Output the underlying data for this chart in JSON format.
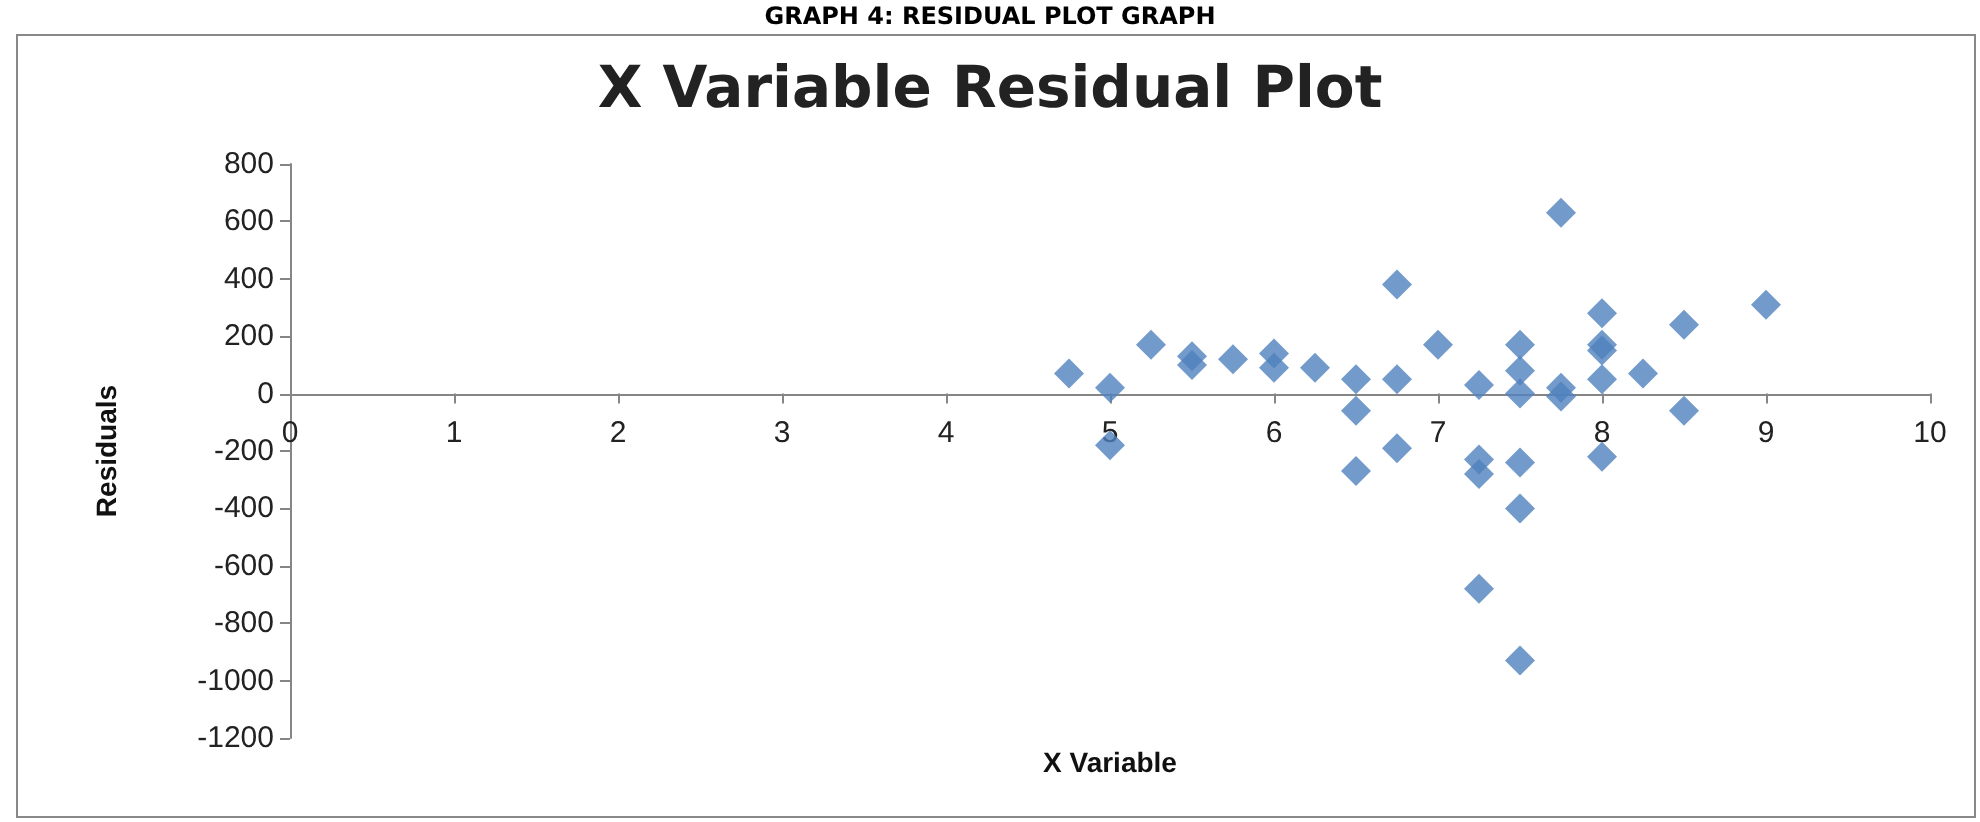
{
  "chart_data": {
    "type": "scatter",
    "title": "X Variable Residual Plot",
    "xlabel": "X Variable",
    "ylabel": "Residuals",
    "annotations": [
      "GRAPH 4: RESIDUAL PLOT GRAPH"
    ],
    "x": [
      4.75,
      5,
      5,
      5.25,
      5.5,
      5.5,
      5.75,
      6,
      6,
      6.25,
      6.5,
      6.5,
      6.5,
      6.75,
      6.75,
      6.75,
      7,
      7.25,
      7.25,
      7.25,
      7.25,
      7.5,
      7.5,
      7.5,
      7.5,
      7.5,
      7.5,
      7.75,
      7.75,
      7.75,
      8,
      8,
      8,
      8,
      8,
      8.25,
      8.5,
      8.5,
      9
    ],
    "values": [
      70,
      20,
      -180,
      170,
      130,
      100,
      120,
      140,
      90,
      90,
      50,
      -60,
      -270,
      380,
      50,
      -190,
      170,
      30,
      -230,
      -280,
      -680,
      170,
      80,
      0,
      -240,
      -400,
      -930,
      630,
      20,
      -10,
      280,
      170,
      150,
      50,
      -220,
      70,
      240,
      -60,
      310
    ],
    "color": "#4f81bd",
    "marker": "diamond",
    "xlim": [
      0,
      10
    ],
    "xticks": [
      0,
      1,
      2,
      3,
      4,
      5,
      6,
      7,
      8,
      9,
      10
    ],
    "ylim": [
      -1200,
      800
    ],
    "yticks": [
      -1200,
      -1000,
      -800,
      -600,
      -400,
      -200,
      0,
      200,
      400,
      600,
      800
    ],
    "grid": false
  }
}
